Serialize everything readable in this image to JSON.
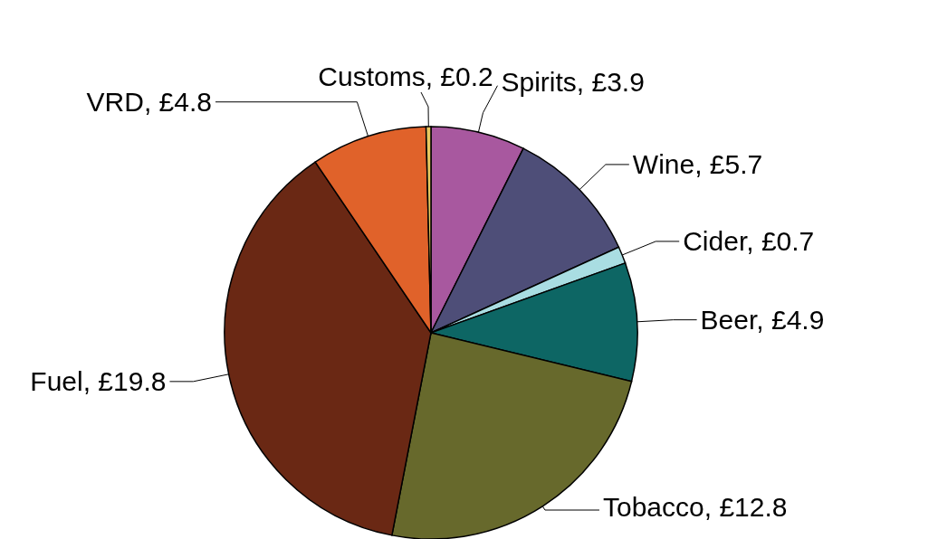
{
  "chart_data": {
    "type": "pie",
    "categories": [
      "Spirits",
      "Wine",
      "Cider",
      "Beer",
      "Tobacco",
      "Fuel",
      "VRD",
      "Customs"
    ],
    "values": [
      3.9,
      5.7,
      0.7,
      4.9,
      12.8,
      19.8,
      4.8,
      0.2
    ],
    "value_labels": [
      "£3.9",
      "£5.7",
      "£0.7",
      "£4.9",
      "£12.8",
      "£19.8",
      "£4.8",
      "£0.2"
    ],
    "colors": [
      "#a8589f",
      "#4e4e78",
      "#a9dde2",
      "#0d6664",
      "#67692c",
      "#6a2814",
      "#e0622a",
      "#e8c860"
    ],
    "legend": false
  }
}
